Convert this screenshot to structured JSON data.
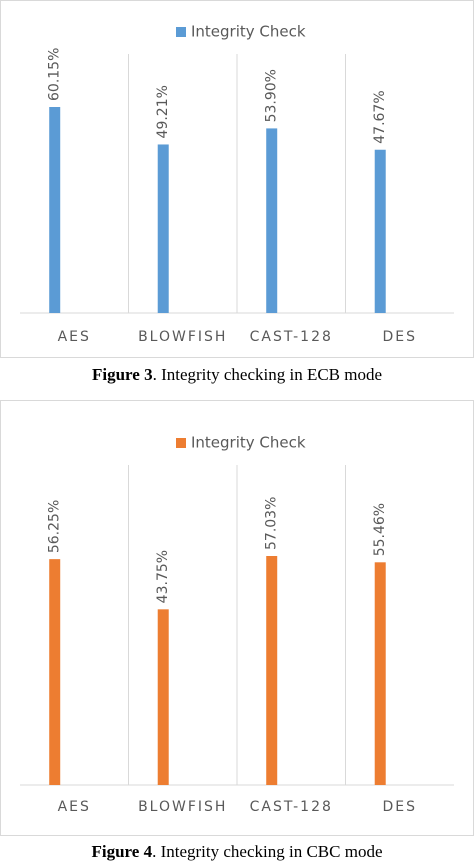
{
  "chart_data": [
    {
      "type": "bar",
      "legend": "Integrity Check",
      "color": "#5b9bd5",
      "categories": [
        "AES",
        "BLOWFISH",
        "CAST-128",
        "DES"
      ],
      "values": [
        60.15,
        49.21,
        53.9,
        47.67
      ],
      "value_labels": [
        "60.15%",
        "49.21%",
        "53.90%",
        "47.67%"
      ],
      "caption_label": "Figure 3",
      "caption_text": ". Integrity checking in ECB mode"
    },
    {
      "type": "bar",
      "legend": "Integrity Check",
      "color": "#ed7d31",
      "categories": [
        "AES",
        "BLOWFISH",
        "CAST-128",
        "DES"
      ],
      "values": [
        56.25,
        43.75,
        57.03,
        55.46
      ],
      "value_labels": [
        "56.25%",
        "43.75%",
        "57.03%",
        "55.46%"
      ],
      "caption_label": "Figure 4",
      "caption_text": ". Integrity checking in CBC mode"
    }
  ]
}
